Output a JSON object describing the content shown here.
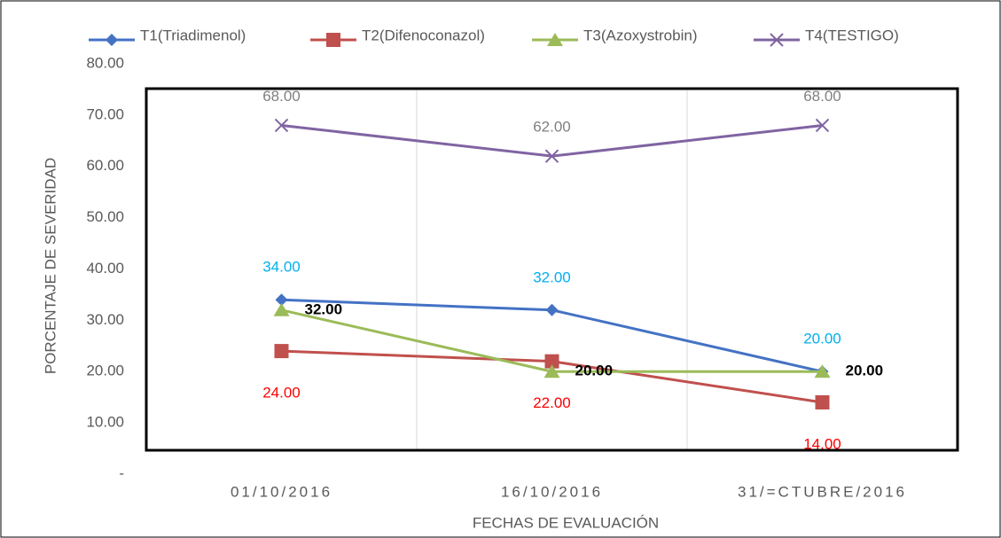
{
  "chart_data": {
    "type": "line",
    "categories": [
      "01/10/2016",
      "16/10/2016",
      "31/=CTUBRE/2016"
    ],
    "series": [
      {
        "name": "T1(Triadimenol)",
        "color": "#4472c4",
        "marker": "diamond",
        "values": [
          34,
          32,
          20
        ],
        "value_labels": [
          "34.00",
          "32.00",
          "20.00"
        ],
        "label_color": "#00b0f0"
      },
      {
        "name": "T2(Difenoconazol)",
        "color": "#c0504d",
        "marker": "square",
        "values": [
          24,
          22,
          14
        ],
        "value_labels": [
          "24.00",
          "22.00",
          "14.00"
        ],
        "label_color": "#ff0000"
      },
      {
        "name": "T3(Azoxystrobin)",
        "color": "#9bbb59",
        "marker": "triangle",
        "values": [
          32,
          20,
          20
        ],
        "value_labels": [
          "32.00",
          "20.00",
          "20.00"
        ],
        "label_color": "#000000"
      },
      {
        "name": "T4(TESTIGO)",
        "color": "#8064a2",
        "marker": "x",
        "values": [
          68,
          62,
          68
        ],
        "value_labels": [
          "68.00",
          "62.00",
          "68.00"
        ],
        "label_color": "#808080"
      }
    ],
    "ylim": [
      0,
      80
    ],
    "yticks": [
      {
        "value": 0,
        "label": "-"
      },
      {
        "value": 10,
        "label": "10.00"
      },
      {
        "value": 20,
        "label": "20.00"
      },
      {
        "value": 30,
        "label": "30.00"
      },
      {
        "value": 40,
        "label": "40.00"
      },
      {
        "value": 50,
        "label": "50.00"
      },
      {
        "value": 60,
        "label": "60.00"
      },
      {
        "value": 70,
        "label": "70.00"
      },
      {
        "value": 80,
        "label": "80.00"
      }
    ],
    "xlabel": "FECHAS DE EVALUACIÓN",
    "ylabel": "PORCENTAJE DE SEVERIDAD",
    "legend": "top"
  }
}
